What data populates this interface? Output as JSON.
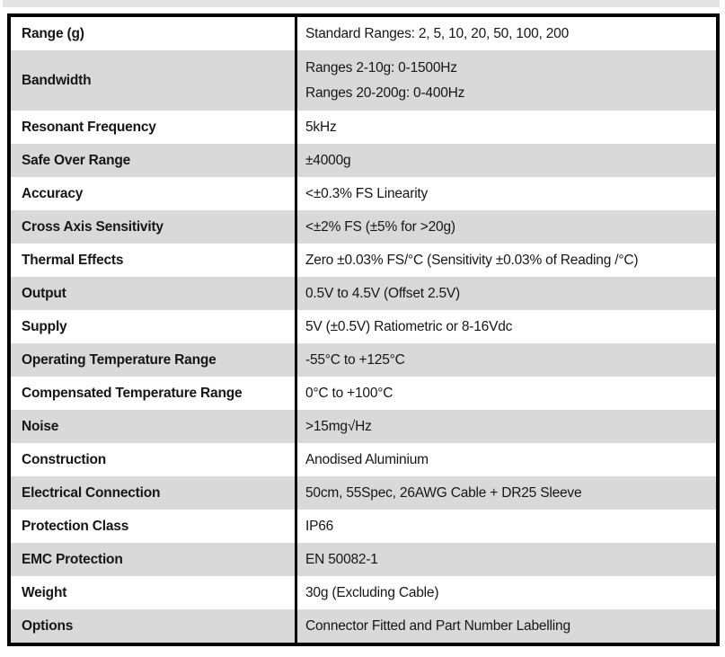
{
  "page": {
    "background": "#ffffff",
    "top_strip_color": "#e4e4e4"
  },
  "table": {
    "border_color": "#000000",
    "row_shade_color": "#d9d9d9",
    "text_color": "#161616",
    "rows": [
      {
        "label": "Range (g)",
        "values": [
          "Standard Ranges: 2, 5, 10, 20, 50, 100, 200"
        ],
        "shaded": false
      },
      {
        "label": "Bandwidth",
        "values": [
          "Ranges 2-10g: 0-1500Hz",
          "Ranges 20-200g: 0-400Hz"
        ],
        "shaded": true
      },
      {
        "label": "Resonant Frequency",
        "values": [
          "5kHz"
        ],
        "shaded": false
      },
      {
        "label": "Safe Over Range",
        "values": [
          "±4000g"
        ],
        "shaded": true
      },
      {
        "label": "Accuracy",
        "values": [
          "<±0.3% FS Linearity"
        ],
        "shaded": false
      },
      {
        "label": "Cross Axis Sensitivity",
        "values": [
          "<±2% FS (±5% for >20g)"
        ],
        "shaded": true
      },
      {
        "label": "Thermal Effects",
        "values": [
          "Zero ±0.03% FS/°C (Sensitivity ±0.03% of Reading /°C)"
        ],
        "shaded": false
      },
      {
        "label": "Output",
        "values": [
          "0.5V to 4.5V (Offset 2.5V)"
        ],
        "shaded": true
      },
      {
        "label": "Supply",
        "values": [
          "5V (±0.5V) Ratiometric or 8-16Vdc"
        ],
        "shaded": false
      },
      {
        "label": "Operating Temperature Range",
        "values": [
          "-55°C to +125°C"
        ],
        "shaded": true
      },
      {
        "label": "Compensated Temperature Range",
        "values": [
          "0°C to +100°C"
        ],
        "shaded": false
      },
      {
        "label": "Noise",
        "values": [
          ">15mg√Hz"
        ],
        "shaded": true
      },
      {
        "label": "Construction",
        "values": [
          "Anodised Aluminium"
        ],
        "shaded": false
      },
      {
        "label": "Electrical Connection",
        "values": [
          "50cm, 55Spec, 26AWG Cable + DR25 Sleeve"
        ],
        "shaded": true
      },
      {
        "label": "Protection Class",
        "values": [
          "IP66"
        ],
        "shaded": false
      },
      {
        "label": "EMC Protection",
        "values": [
          "EN 50082-1"
        ],
        "shaded": true
      },
      {
        "label": "Weight",
        "values": [
          "30g (Excluding Cable)"
        ],
        "shaded": false
      },
      {
        "label": "Options",
        "values": [
          "Connector Fitted and Part Number Labelling"
        ],
        "shaded": true
      }
    ]
  }
}
